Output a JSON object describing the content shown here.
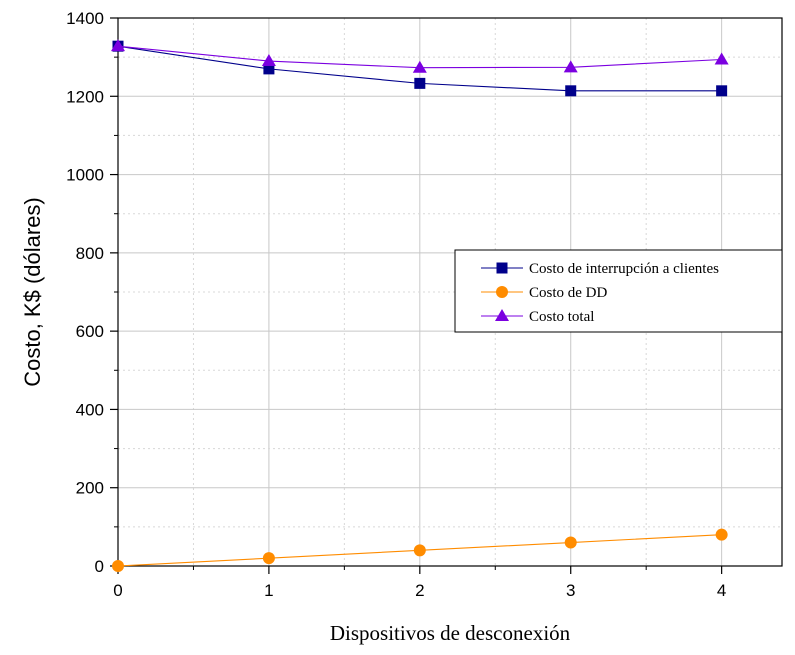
{
  "chart_data": {
    "type": "line",
    "xlabel": "Dispositivos de desconexión",
    "ylabel": "Costo, K$ (dólares)",
    "x": [
      0,
      1,
      2,
      3,
      4
    ],
    "xlim": [
      0,
      4.4
    ],
    "ylim": [
      0,
      1400
    ],
    "x_ticks": [
      0,
      1,
      2,
      3,
      4
    ],
    "x_tick_labels": [
      "0",
      "1",
      "2",
      "3",
      "4"
    ],
    "y_ticks": [
      0,
      200,
      400,
      600,
      800,
      1000,
      1200,
      1400
    ],
    "y_tick_labels": [
      "0",
      "200",
      "400",
      "600",
      "800",
      "1000",
      "1200",
      "1400"
    ],
    "grid": true,
    "legend_position": "center-right",
    "series": [
      {
        "name": "Costo de interrupción a clientes",
        "values": [
          1328,
          1270,
          1233,
          1214,
          1214
        ],
        "color": "#00008b",
        "marker": "square"
      },
      {
        "name": "Costo de DD",
        "values": [
          0,
          20,
          40,
          60,
          80
        ],
        "color": "#ff8c00",
        "marker": "circle"
      },
      {
        "name": "Costo total",
        "values": [
          1328,
          1290,
          1273,
          1274,
          1294
        ],
        "color": "#7b00e0",
        "marker": "triangle"
      }
    ]
  }
}
